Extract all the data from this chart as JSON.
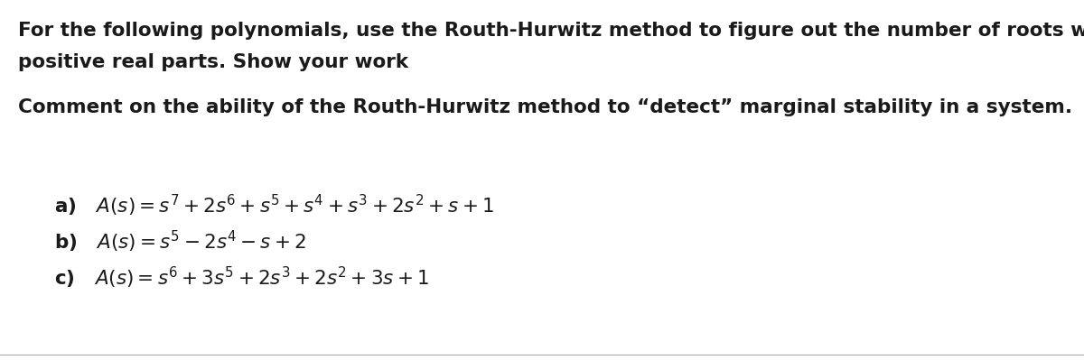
{
  "background_color": "#ffffff",
  "border_color": "#aaaaaa",
  "paragraph1_line1": "For the following polynomials, use the Routh-Hurwitz method to figure out the number of roots with",
  "paragraph1_line2": "positive real parts. Show your work",
  "paragraph2": "Comment on the ability of the Routh-Hurwitz method to “detect” marginal stability in a system.",
  "text_color": "#1a1a1a",
  "font_size_main": 15.5,
  "font_size_eq": 15.5,
  "figwidth": 12.0,
  "figheight": 3.99
}
